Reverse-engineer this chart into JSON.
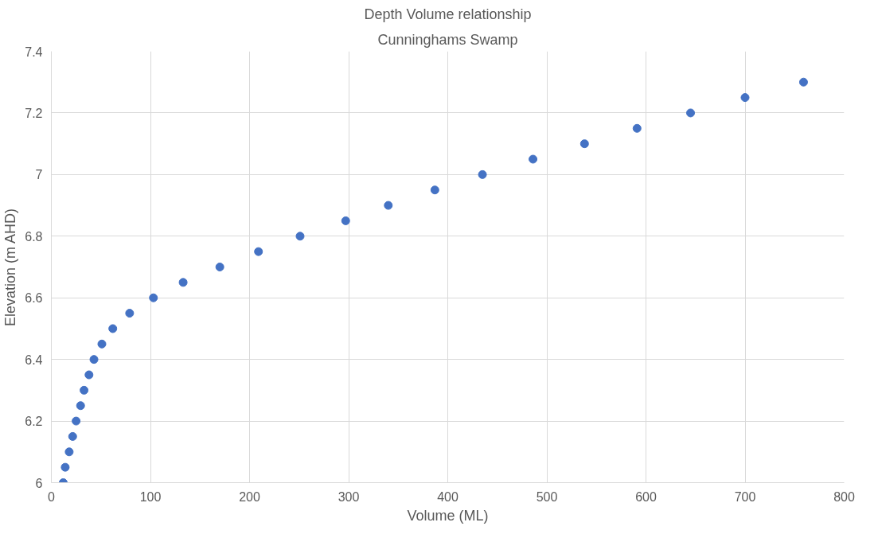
{
  "chart_data": {
    "type": "scatter",
    "title": "Depth Volume relationship",
    "subtitle": "Cunninghams Swamp",
    "xlabel": "Volume (ML)",
    "ylabel": "Elevation (m AHD)",
    "x": [
      12,
      14,
      18,
      21.5,
      25,
      29.5,
      33,
      38,
      43,
      51,
      62,
      79,
      103,
      133,
      170,
      209,
      251,
      297,
      340,
      387,
      435,
      486,
      538,
      591,
      645,
      700,
      759
    ],
    "series": [
      {
        "color": "#4472c4",
        "values": [
          6.0,
          6.05,
          6.1,
          6.15,
          6.2,
          6.25,
          6.3,
          6.35,
          6.4,
          6.45,
          6.5,
          6.55,
          6.6,
          6.65,
          6.7,
          6.75,
          6.8,
          6.85,
          6.9,
          6.95,
          7.0,
          7.05,
          7.1,
          7.15,
          7.2,
          7.25,
          7.3
        ]
      }
    ],
    "xlim": [
      0,
      800
    ],
    "xticks": [
      0,
      100,
      200,
      300,
      400,
      500,
      600,
      700,
      800
    ],
    "ylim": [
      6,
      7.4
    ],
    "yticks": [
      6,
      6.2,
      6.4,
      6.6,
      6.8,
      7,
      7.2,
      7.4
    ],
    "grid": true,
    "marker": "circle"
  }
}
